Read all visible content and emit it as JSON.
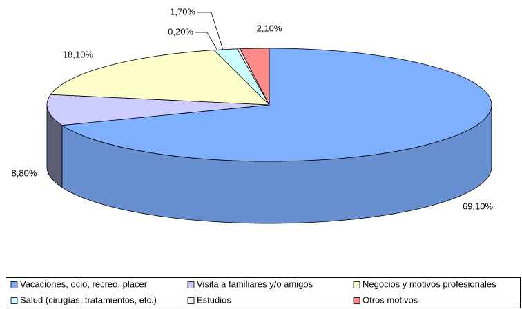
{
  "chart_data": {
    "type": "pie3d",
    "categories": [
      "Vacaciones, ocio, recreo, placer",
      "Visita a familiares y/o amigos",
      "Negocios y motivos profesionales",
      "Salud (cirugías, tratamientos, etc.)",
      "Estudios",
      "Otros motivos"
    ],
    "values": [
      69.1,
      8.8,
      18.1,
      1.7,
      0.2,
      2.1
    ],
    "value_labels": [
      "69,10%",
      "8,80%",
      "18,10%",
      "1,70%",
      "0,20%",
      "2,10%"
    ],
    "colors": [
      "#7fb0ff",
      "#ccccff",
      "#ffffcc",
      "#ccffff",
      "#f4f4f4",
      "#ff8a8a"
    ],
    "legend": "bottom"
  }
}
